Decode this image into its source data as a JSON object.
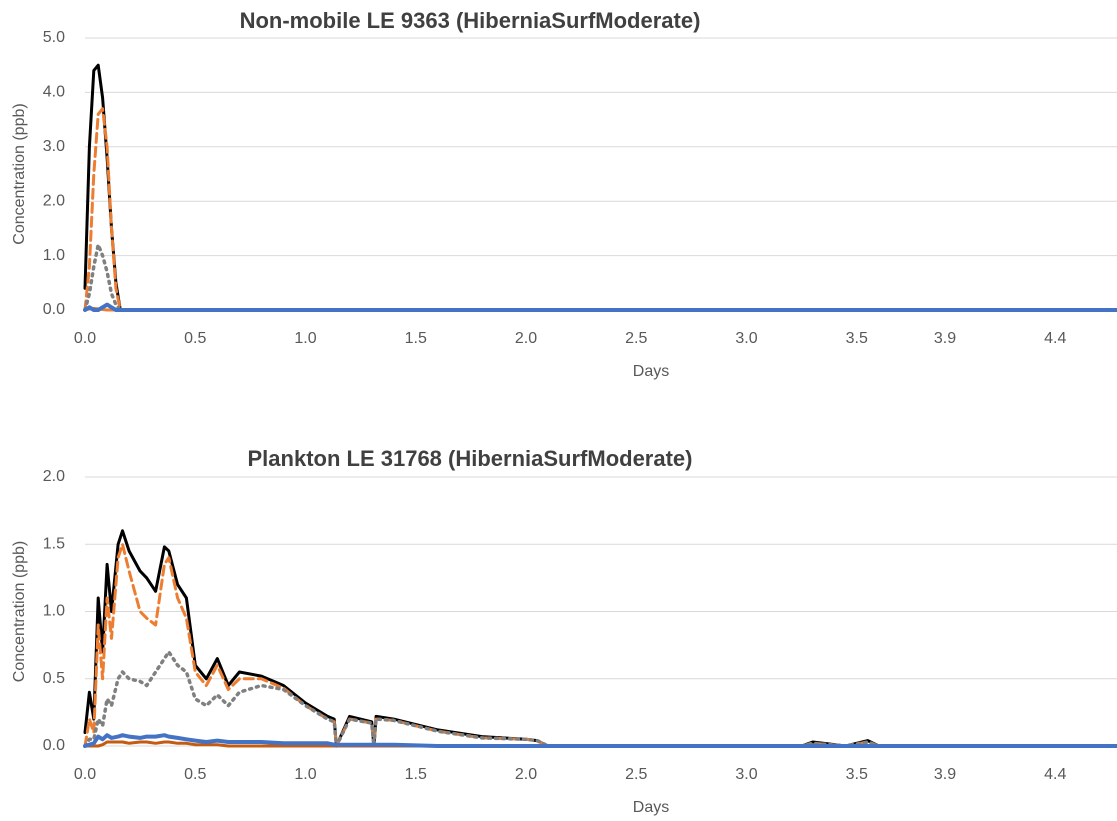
{
  "chart_data": [
    {
      "type": "line",
      "title": "Non-mobile LE 9363 (HiberniaSurfModerate)",
      "x_label": "Days",
      "y_label": "Concentration (ppb)",
      "xlim": [
        0,
        4.68
      ],
      "xticks": [
        {
          "value": 0,
          "label": "0.0"
        },
        0.5,
        {
          "value": 1,
          "label": "1.0"
        },
        1.5,
        {
          "value": 2,
          "label": "2.0"
        },
        2.5,
        {
          "value": 3,
          "label": "3.0"
        },
        3.5,
        3.9,
        4.4
      ],
      "ylim": [
        0,
        5
      ],
      "yticks": [
        {
          "value": 0,
          "label": "0.0"
        },
        {
          "value": 1,
          "label": "1.0"
        },
        {
          "value": 2,
          "label": "2.0"
        },
        {
          "value": 3,
          "label": "3.0"
        },
        {
          "value": 4,
          "label": "4.0"
        },
        {
          "value": 5,
          "label": "5.0"
        }
      ],
      "grid": true,
      "x": [
        0,
        0.02,
        0.04,
        0.06,
        0.08,
        0.1,
        0.12,
        0.14,
        0.16,
        0.5,
        1,
        2,
        3,
        4,
        4.68
      ],
      "series": [
        {
          "color": "#ed7d31",
          "dash": "solid",
          "values": [
            0,
            0.02,
            0.03,
            0.02,
            0.01,
            0,
            0,
            0,
            0,
            0,
            0,
            0,
            0,
            0,
            0
          ]
        },
        {
          "color": "#000000",
          "dash": "solid",
          "values": [
            0.4,
            3.0,
            4.4,
            4.5,
            3.9,
            2.8,
            1.5,
            0.5,
            0,
            0,
            0,
            0,
            0,
            0,
            0
          ]
        },
        {
          "color": "#ed7d31",
          "dash": "dashed",
          "values": [
            0,
            0.8,
            2.5,
            3.6,
            3.7,
            3.0,
            1.5,
            0.4,
            0,
            0,
            0,
            0,
            0,
            0,
            0
          ]
        },
        {
          "color": "#808080",
          "dash": "dotted",
          "values": [
            0,
            0.3,
            0.8,
            1.2,
            1.0,
            0.7,
            0.3,
            0.1,
            0,
            0,
            0,
            0,
            0,
            0,
            0
          ]
        },
        {
          "color": "#4472c4",
          "dash": "solid",
          "values": [
            0,
            0.05,
            0,
            0,
            0.05,
            0.1,
            0.05,
            0,
            0,
            0,
            0,
            0,
            0,
            0,
            0
          ]
        }
      ]
    },
    {
      "type": "line",
      "title": "Plankton LE 31768 (HiberniaSurfModerate)",
      "x_label": "Days",
      "y_label": "Concentration (ppb)",
      "xlim": [
        0,
        4.68
      ],
      "xticks": [
        {
          "value": 0,
          "label": "0.0"
        },
        0.5,
        {
          "value": 1,
          "label": "1.0"
        },
        1.5,
        {
          "value": 2,
          "label": "2.0"
        },
        2.5,
        {
          "value": 3,
          "label": "3.0"
        },
        3.5,
        3.9,
        4.4
      ],
      "ylim": [
        0,
        2
      ],
      "yticks": [
        {
          "value": 0,
          "label": "0.0"
        },
        0.5,
        {
          "value": 1,
          "label": "1.0"
        },
        1.5,
        {
          "value": 2,
          "label": "2.0"
        }
      ],
      "grid": true,
      "x": [
        0,
        0.02,
        0.04,
        0.06,
        0.08,
        0.1,
        0.12,
        0.15,
        0.17,
        0.2,
        0.25,
        0.28,
        0.32,
        0.36,
        0.38,
        0.42,
        0.46,
        0.5,
        0.55,
        0.6,
        0.65,
        0.7,
        0.8,
        0.9,
        1.0,
        1.1,
        1.13,
        1.14,
        1.2,
        1.3,
        1.31,
        1.32,
        1.4,
        1.6,
        1.8,
        2.0,
        2.05,
        2.1,
        3.25,
        3.3,
        3.45,
        3.55,
        3.6,
        4.68
      ],
      "series": [
        {
          "color": "#000000",
          "dash": "solid",
          "values": [
            0.1,
            0.4,
            0.2,
            1.1,
            0.7,
            1.35,
            1.0,
            1.5,
            1.6,
            1.45,
            1.3,
            1.25,
            1.15,
            1.48,
            1.45,
            1.2,
            1.1,
            0.6,
            0.5,
            0.65,
            0.45,
            0.55,
            0.52,
            0.45,
            0.32,
            0.22,
            0.2,
            0,
            0.22,
            0.18,
            0,
            0.22,
            0.2,
            0.12,
            0.07,
            0.05,
            0.04,
            0,
            0,
            0.03,
            0,
            0.04,
            0,
            0
          ]
        },
        {
          "color": "#ed7d31",
          "dash": "dashed",
          "values": [
            0,
            0.2,
            0.1,
            0.9,
            0.5,
            1.1,
            0.8,
            1.4,
            1.5,
            1.3,
            1.0,
            0.95,
            0.9,
            1.35,
            1.4,
            1.1,
            0.95,
            0.55,
            0.45,
            0.6,
            0.42,
            0.5,
            0.5,
            0.43,
            0.3,
            0.2,
            0.18,
            0,
            0.2,
            0.17,
            0,
            0.2,
            0.19,
            0.11,
            0.06,
            0.05,
            0.04,
            0,
            0,
            0.02,
            0,
            0.03,
            0,
            0
          ]
        },
        {
          "color": "#808080",
          "dash": "dotted",
          "values": [
            0,
            0.05,
            0.05,
            0.2,
            0.15,
            0.35,
            0.3,
            0.5,
            0.55,
            0.5,
            0.48,
            0.45,
            0.55,
            0.65,
            0.7,
            0.6,
            0.55,
            0.35,
            0.3,
            0.38,
            0.3,
            0.4,
            0.45,
            0.42,
            0.3,
            0.2,
            0.18,
            0,
            0.2,
            0.17,
            0,
            0.2,
            0.19,
            0.11,
            0.06,
            0.05,
            0.04,
            0,
            0,
            0.02,
            0,
            0.03,
            0,
            0
          ]
        },
        {
          "color": "#c55a11",
          "dash": "solid",
          "values": [
            0,
            0,
            0,
            0,
            0.01,
            0.03,
            0.03,
            0.03,
            0.03,
            0.02,
            0.03,
            0.03,
            0.02,
            0.03,
            0.03,
            0.02,
            0.02,
            0.01,
            0.01,
            0.01,
            0,
            0,
            0,
            0,
            0,
            0,
            0,
            0,
            0,
            0,
            0,
            0,
            0,
            0,
            0,
            0,
            0,
            0,
            0,
            0,
            0,
            0,
            0,
            0
          ]
        },
        {
          "color": "#4472c4",
          "dash": "solid",
          "values": [
            0,
            0.01,
            0.02,
            0.07,
            0.05,
            0.08,
            0.06,
            0.07,
            0.08,
            0.07,
            0.06,
            0.07,
            0.07,
            0.08,
            0.07,
            0.06,
            0.05,
            0.04,
            0.03,
            0.04,
            0.03,
            0.03,
            0.03,
            0.02,
            0.02,
            0.02,
            0.01,
            0.01,
            0.01,
            0.01,
            0.01,
            0.01,
            0.01,
            0,
            0,
            0,
            0,
            0,
            0,
            0,
            0,
            0,
            0,
            0
          ]
        }
      ]
    }
  ]
}
